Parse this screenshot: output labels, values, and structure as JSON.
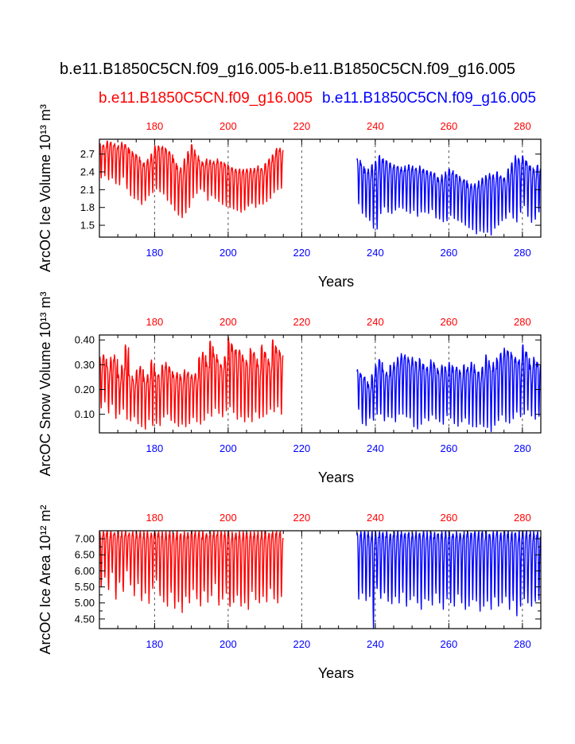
{
  "title": "b.e11.B1850C5CN.f09_g16.005-b.e11.B1850C5CN.f09_g16.005",
  "legend": {
    "case1": "b.e11.B1850C5CN.f09_g16.005",
    "case2": "b.e11.B1850C5CN.f09_g16.005"
  },
  "colors": {
    "case1": "#ff0000",
    "case2": "#0000ff",
    "grid": "#555555",
    "frame": "#000000"
  },
  "chart_data": [
    {
      "type": "line",
      "ylabel": "ArcOC Ice Volume 10¹³ m³",
      "xlabel": "Years",
      "xlim": [
        165,
        285
      ],
      "ylim": [
        1.3,
        2.95
      ],
      "yticks": [
        1.5,
        1.8,
        2.1,
        2.4,
        2.7
      ],
      "ytick_labels": [
        "1.5",
        "1.8",
        "2.1",
        "2.4",
        "2.7"
      ],
      "xticks": [
        180,
        200,
        220,
        240,
        260,
        280
      ],
      "xtick_labels": [
        "180",
        "200",
        "220",
        "240",
        "260",
        "280"
      ],
      "vertical_gridlines": [
        180,
        200,
        220,
        240,
        260,
        280
      ],
      "series": [
        {
          "name": "b.e11.B1850C5CN.f09_g16.005",
          "color": "#ff0000",
          "x_start": 165,
          "x_end": 215,
          "annual_max": [
            2.88,
            2.86,
            2.92,
            2.9,
            2.88,
            2.85,
            2.9,
            2.86,
            2.78,
            2.72,
            2.68,
            2.6,
            2.55,
            2.62,
            2.7,
            2.84,
            2.86,
            2.83,
            2.8,
            2.74,
            2.62,
            2.5,
            2.48,
            2.62,
            2.75,
            2.86,
            2.7,
            2.6,
            2.55,
            2.62,
            2.6,
            2.58,
            2.62,
            2.58,
            2.55,
            2.5,
            2.47,
            2.45,
            2.45,
            2.44,
            2.45,
            2.46,
            2.48,
            2.5,
            2.47,
            2.55,
            2.62,
            2.7,
            2.8,
            2.8
          ],
          "annual_min": [
            2.3,
            2.32,
            2.25,
            2.28,
            2.2,
            2.18,
            2.3,
            2.1,
            2.0,
            1.95,
            1.92,
            1.85,
            1.9,
            2.0,
            2.05,
            2.1,
            2.05,
            2.0,
            1.92,
            1.85,
            1.75,
            1.65,
            1.62,
            1.7,
            1.8,
            1.95,
            2.02,
            2.1,
            2.05,
            1.92,
            2.0,
            1.95,
            1.9,
            1.85,
            1.82,
            1.8,
            1.75,
            1.75,
            1.72,
            1.75,
            1.8,
            1.85,
            1.8,
            1.85,
            1.85,
            1.9,
            1.95,
            2.05,
            2.1,
            2.1
          ]
        },
        {
          "name": "b.e11.B1850C5CN.f09_g16.005",
          "color": "#0000ff",
          "x_start": 235,
          "x_end": 285,
          "annual_max": [
            2.62,
            2.55,
            2.45,
            2.45,
            2.52,
            2.58,
            2.68,
            2.62,
            2.58,
            2.55,
            2.52,
            2.5,
            2.48,
            2.5,
            2.52,
            2.5,
            2.48,
            2.5,
            2.45,
            2.42,
            2.4,
            2.38,
            2.3,
            2.35,
            2.4,
            2.45,
            2.42,
            2.35,
            2.3,
            2.3,
            2.2,
            2.2,
            2.2,
            2.25,
            2.3,
            2.35,
            2.38,
            2.35,
            2.4,
            2.35,
            2.3,
            2.45,
            2.55,
            2.68,
            2.62,
            2.68,
            2.6,
            2.5,
            2.45,
            2.52
          ],
          "annual_min": [
            1.85,
            1.7,
            1.62,
            1.55,
            1.45,
            1.4,
            1.68,
            1.78,
            1.72,
            1.7,
            1.75,
            1.8,
            1.78,
            1.72,
            1.7,
            1.75,
            1.65,
            1.7,
            1.72,
            1.68,
            1.75,
            1.62,
            1.6,
            1.55,
            1.55,
            1.65,
            1.6,
            1.58,
            1.55,
            1.5,
            1.45,
            1.4,
            1.35,
            1.4,
            1.38,
            1.35,
            1.32,
            1.45,
            1.5,
            1.55,
            1.6,
            1.7,
            1.62,
            1.55,
            1.72,
            1.8,
            1.65,
            1.55,
            1.6,
            1.7
          ]
        }
      ]
    },
    {
      "type": "line",
      "ylabel": "ArcOC Snow Volume 10¹³ m³",
      "xlabel": "Years",
      "xlim": [
        165,
        285
      ],
      "ylim": [
        0.025,
        0.42
      ],
      "yticks": [
        0.1,
        0.2,
        0.3,
        0.4
      ],
      "ytick_labels": [
        "0.10",
        "0.20",
        "0.30",
        "0.40"
      ],
      "xticks": [
        180,
        200,
        220,
        240,
        260,
        280
      ],
      "xtick_labels": [
        "180",
        "200",
        "220",
        "240",
        "260",
        "280"
      ],
      "vertical_gridlines": [
        180,
        200,
        220,
        240,
        260,
        280
      ],
      "series": [
        {
          "name": "b.e11.B1850C5CN.f09_g16.005",
          "color": "#ff0000",
          "x_start": 165,
          "x_end": 215,
          "annual_max": [
            0.33,
            0.34,
            0.3,
            0.33,
            0.34,
            0.26,
            0.3,
            0.38,
            0.26,
            0.24,
            0.28,
            0.3,
            0.25,
            0.26,
            0.32,
            0.27,
            0.26,
            0.3,
            0.31,
            0.29,
            0.26,
            0.27,
            0.25,
            0.28,
            0.27,
            0.26,
            0.27,
            0.33,
            0.36,
            0.31,
            0.4,
            0.35,
            0.32,
            0.3,
            0.34,
            0.41,
            0.38,
            0.36,
            0.37,
            0.33,
            0.31,
            0.37,
            0.35,
            0.3,
            0.38,
            0.35,
            0.31,
            0.4,
            0.37,
            0.35
          ],
          "annual_min": [
            0.12,
            0.15,
            0.1,
            0.14,
            0.08,
            0.1,
            0.12,
            0.08,
            0.07,
            0.09,
            0.06,
            0.05,
            0.04,
            0.07,
            0.05,
            0.06,
            0.05,
            0.08,
            0.1,
            0.07,
            0.06,
            0.05,
            0.06,
            0.05,
            0.06,
            0.08,
            0.07,
            0.06,
            0.07,
            0.1,
            0.09,
            0.12,
            0.1,
            0.09,
            0.11,
            0.12,
            0.1,
            0.08,
            0.09,
            0.07,
            0.08,
            0.07,
            0.1,
            0.08,
            0.09,
            0.1,
            0.12,
            0.11,
            0.13,
            0.1
          ]
        },
        {
          "name": "b.e11.B1850C5CN.f09_g16.005",
          "color": "#0000ff",
          "x_start": 235,
          "x_end": 285,
          "annual_max": [
            0.28,
            0.26,
            0.25,
            0.22,
            0.26,
            0.3,
            0.33,
            0.28,
            0.27,
            0.3,
            0.31,
            0.33,
            0.35,
            0.34,
            0.32,
            0.33,
            0.31,
            0.33,
            0.3,
            0.29,
            0.32,
            0.3,
            0.28,
            0.3,
            0.29,
            0.31,
            0.29,
            0.3,
            0.27,
            0.3,
            0.29,
            0.31,
            0.28,
            0.27,
            0.29,
            0.34,
            0.3,
            0.31,
            0.33,
            0.35,
            0.37,
            0.36,
            0.34,
            0.33,
            0.32,
            0.38,
            0.35,
            0.3,
            0.33,
            0.31
          ],
          "annual_min": [
            0.12,
            0.06,
            0.05,
            0.08,
            0.07,
            0.1,
            0.1,
            0.07,
            0.09,
            0.08,
            0.07,
            0.1,
            0.1,
            0.09,
            0.08,
            0.05,
            0.04,
            0.06,
            0.08,
            0.07,
            0.09,
            0.08,
            0.07,
            0.06,
            0.09,
            0.08,
            0.06,
            0.05,
            0.07,
            0.08,
            0.06,
            0.05,
            0.04,
            0.06,
            0.05,
            0.04,
            0.03,
            0.05,
            0.07,
            0.09,
            0.07,
            0.06,
            0.08,
            0.1,
            0.09,
            0.1,
            0.11,
            0.09,
            0.08,
            0.09
          ]
        }
      ]
    },
    {
      "type": "line",
      "ylabel": "ArcOC Ice Area 10¹² m²",
      "xlabel": "Years",
      "xlim": [
        165,
        285
      ],
      "ylim": [
        4.2,
        7.25
      ],
      "yticks": [
        4.5,
        4.75,
        5.0,
        5.25,
        5.5,
        5.75,
        6.0,
        6.25,
        6.5,
        6.75,
        7.0
      ],
      "ytick_labels": [
        "4.50",
        "",
        "5.00",
        "",
        "5.50",
        "",
        "6.00",
        "",
        "6.50",
        "",
        "7.00"
      ],
      "xticks": [
        180,
        200,
        220,
        240,
        260,
        280
      ],
      "xtick_labels": [
        "180",
        "200",
        "220",
        "240",
        "260",
        "280"
      ],
      "vertical_gridlines": [
        180,
        200,
        220,
        240,
        260,
        280
      ],
      "series": [
        {
          "name": "b.e11.B1850C5CN.f09_g16.005",
          "color": "#ff0000",
          "x_start": 165,
          "x_end": 215,
          "annual_max": [
            7.22,
            7.22,
            7.22,
            7.22,
            7.22,
            7.22,
            7.22,
            7.22,
            7.22,
            7.22,
            7.22,
            7.22,
            7.22,
            7.22,
            7.22,
            7.22,
            7.22,
            7.22,
            7.22,
            7.22,
            7.22,
            7.22,
            7.22,
            7.22,
            7.22,
            7.22,
            7.22,
            7.22,
            7.22,
            7.22,
            7.22,
            7.22,
            7.22,
            7.22,
            7.22,
            7.22,
            7.22,
            7.22,
            7.22,
            7.22,
            7.22,
            7.22,
            7.22,
            7.22,
            7.22,
            7.22,
            7.22,
            7.22,
            7.22,
            7.22
          ],
          "annual_min": [
            5.5,
            5.8,
            5.4,
            5.9,
            5.1,
            5.6,
            5.3,
            6.0,
            5.5,
            5.2,
            5.6,
            5.0,
            5.3,
            4.9,
            5.4,
            5.7,
            5.2,
            5.0,
            4.9,
            5.3,
            4.8,
            5.0,
            4.7,
            5.2,
            5.0,
            5.4,
            5.1,
            4.9,
            5.3,
            5.0,
            5.2,
            5.6,
            4.9,
            5.1,
            5.3,
            4.8,
            5.0,
            5.2,
            4.9,
            5.0,
            4.8,
            5.3,
            5.1,
            5.0,
            5.2,
            5.0,
            5.4,
            5.1,
            5.0,
            5.2
          ]
        },
        {
          "name": "b.e11.B1850C5CN.f09_g16.005",
          "color": "#0000ff",
          "x_start": 235,
          "x_end": 285,
          "annual_max": [
            7.22,
            7.22,
            7.22,
            7.22,
            7.22,
            7.22,
            7.22,
            7.22,
            7.22,
            7.22,
            7.22,
            7.22,
            7.22,
            7.22,
            7.22,
            7.22,
            7.22,
            7.22,
            7.22,
            7.22,
            7.22,
            7.22,
            7.22,
            7.22,
            7.22,
            7.22,
            7.22,
            7.22,
            7.22,
            7.22,
            7.22,
            7.22,
            7.22,
            7.22,
            7.22,
            7.22,
            7.22,
            7.22,
            7.22,
            7.22,
            7.22,
            7.22,
            7.22,
            7.22,
            7.22,
            7.22,
            7.22,
            7.22,
            7.22,
            7.22
          ],
          "annual_min": [
            5.1,
            5.3,
            5.0,
            5.2,
            4.2,
            5.4,
            5.1,
            5.3,
            5.0,
            4.9,
            5.2,
            5.0,
            5.3,
            4.9,
            5.1,
            5.2,
            5.0,
            4.8,
            5.1,
            5.0,
            4.9,
            5.3,
            5.0,
            4.8,
            5.1,
            5.0,
            4.9,
            5.2,
            5.0,
            4.8,
            4.9,
            5.1,
            5.0,
            4.7,
            4.9,
            5.0,
            4.8,
            5.1,
            4.9,
            5.0,
            5.2,
            4.8,
            5.0,
            4.6,
            4.9,
            5.1,
            5.0,
            4.9,
            5.0,
            5.1
          ]
        }
      ]
    }
  ]
}
